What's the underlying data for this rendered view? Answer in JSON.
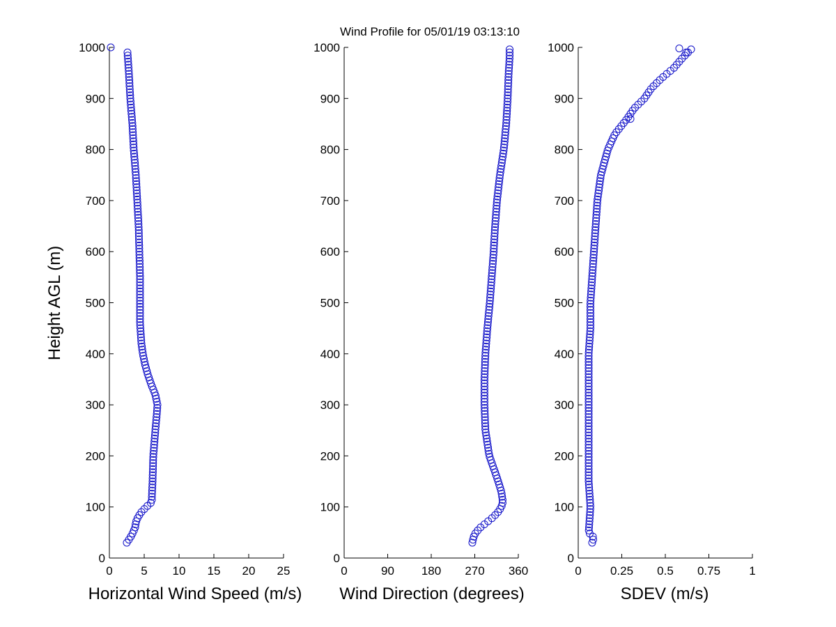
{
  "figure": {
    "title": "Wind Profile for  05/01/19 03:13:10",
    "ylabel": "Height AGL (m)"
  },
  "chart_data": [
    {
      "type": "scatter",
      "xlabel": "Horizontal Wind Speed (m/s)",
      "ylabel": "Height AGL (m)",
      "xlim": [
        0,
        25
      ],
      "ylim": [
        0,
        1000
      ],
      "xticks": [
        "0",
        "5",
        "10",
        "15",
        "20",
        "25"
      ],
      "yticks": [
        "0",
        "100",
        "200",
        "300",
        "400",
        "500",
        "600",
        "700",
        "800",
        "900",
        "1000"
      ],
      "grid": false,
      "marker": "open-circle",
      "color": "#1010c8",
      "profile": {
        "y": [
          30,
          40,
          50,
          60,
          70,
          80,
          90,
          100,
          110,
          120,
          150,
          200,
          250,
          280,
          300,
          320,
          340,
          360,
          380,
          400,
          420,
          440,
          460,
          500,
          550,
          600,
          650,
          700,
          750,
          800,
          850,
          900,
          950,
          970,
          990
        ],
        "x": [
          2.5,
          3.0,
          3.4,
          3.7,
          3.8,
          4.1,
          4.6,
          5.3,
          6.1,
          6.1,
          6.2,
          6.3,
          6.6,
          6.8,
          6.9,
          6.6,
          6.0,
          5.5,
          5.1,
          4.8,
          4.6,
          4.5,
          4.4,
          4.4,
          4.4,
          4.3,
          4.2,
          4.0,
          3.8,
          3.5,
          3.3,
          3.0,
          2.8,
          2.7,
          2.6
        ]
      },
      "extra_points": [
        {
          "x": 0.2,
          "y": 1000
        }
      ]
    },
    {
      "type": "scatter",
      "xlabel": "Wind Direction (degrees)",
      "ylabel": "",
      "xlim": [
        0,
        360
      ],
      "ylim": [
        0,
        1000
      ],
      "xticks": [
        "0",
        "90",
        "180",
        "270",
        "360"
      ],
      "yticks": [
        "0",
        "100",
        "200",
        "300",
        "400",
        "500",
        "600",
        "700",
        "800",
        "900",
        "1000"
      ],
      "grid": false,
      "marker": "open-circle",
      "color": "#1010c8",
      "profile": {
        "y": [
          30,
          40,
          50,
          60,
          70,
          80,
          90,
          100,
          110,
          130,
          160,
          200,
          250,
          300,
          350,
          400,
          450,
          500,
          550,
          600,
          650,
          700,
          750,
          800,
          850,
          900,
          950,
          980,
          1000
        ],
        "x": [
          265,
          267,
          272,
          282,
          295,
          308,
          318,
          325,
          328,
          325,
          315,
          300,
          292,
          290,
          290,
          292,
          296,
          301,
          305,
          309,
          312,
          316,
          322,
          330,
          335,
          338,
          340,
          342,
          342
        ]
      },
      "extra_points": []
    },
    {
      "type": "scatter",
      "xlabel": "SDEV  (m/s)",
      "ylabel": "",
      "xlim": [
        0,
        1
      ],
      "ylim": [
        0,
        1000
      ],
      "xticks": [
        "0",
        "0.25",
        "0.5",
        "0.75",
        "1"
      ],
      "yticks": [
        "0",
        "100",
        "200",
        "300",
        "400",
        "500",
        "600",
        "700",
        "800",
        "900",
        "1000"
      ],
      "grid": false,
      "marker": "open-circle",
      "color": "#1010c8",
      "profile": {
        "y": [
          30,
          40,
          50,
          100,
          150,
          200,
          250,
          300,
          350,
          400,
          450,
          500,
          550,
          600,
          650,
          700,
          750,
          800,
          830,
          860,
          880,
          900,
          920,
          940,
          960,
          980,
          1000
        ],
        "x": [
          0.08,
          0.09,
          0.06,
          0.07,
          0.06,
          0.06,
          0.06,
          0.06,
          0.06,
          0.06,
          0.07,
          0.07,
          0.08,
          0.09,
          0.1,
          0.11,
          0.13,
          0.17,
          0.21,
          0.28,
          0.32,
          0.38,
          0.42,
          0.48,
          0.55,
          0.6,
          0.66
        ]
      },
      "extra_points": [
        {
          "x": 0.58,
          "y": 998
        },
        {
          "x": 0.62,
          "y": 990
        },
        {
          "x": 0.3,
          "y": 860
        }
      ]
    }
  ]
}
